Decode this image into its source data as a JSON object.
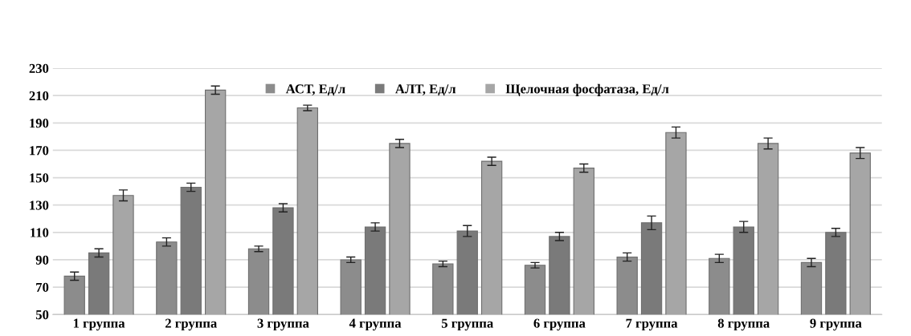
{
  "chart_data": {
    "type": "bar",
    "categories": [
      "1 группа",
      "2 группа",
      "3 группа",
      "4 группа",
      "5 группа",
      "6 группа",
      "7 группа",
      "8 группа",
      "9 группа"
    ],
    "series": [
      {
        "name": "АСТ, Ед/л",
        "color": "#8c8c8c",
        "values": [
          78,
          103,
          98,
          90,
          87,
          86,
          92,
          91,
          88
        ],
        "errors": [
          3,
          3,
          2,
          2,
          2,
          2,
          3,
          3,
          3
        ]
      },
      {
        "name": "АЛТ, Ед/л",
        "color": "#7a7a7a",
        "values": [
          95,
          143,
          128,
          114,
          111,
          107,
          117,
          114,
          110
        ],
        "errors": [
          3,
          3,
          3,
          3,
          4,
          3,
          5,
          4,
          3
        ]
      },
      {
        "name": "Щелочная фосфатаза, Ед/л",
        "color": "#a6a6a6",
        "values": [
          137,
          214,
          201,
          175,
          162,
          157,
          183,
          175,
          168
        ],
        "errors": [
          4,
          3,
          2,
          3,
          3,
          3,
          4,
          4,
          4
        ]
      }
    ],
    "ylim": [
      50,
      230
    ],
    "yticks": [
      50,
      70,
      90,
      110,
      130,
      150,
      170,
      190,
      210,
      230
    ],
    "grid": "y",
    "legend": "top"
  }
}
